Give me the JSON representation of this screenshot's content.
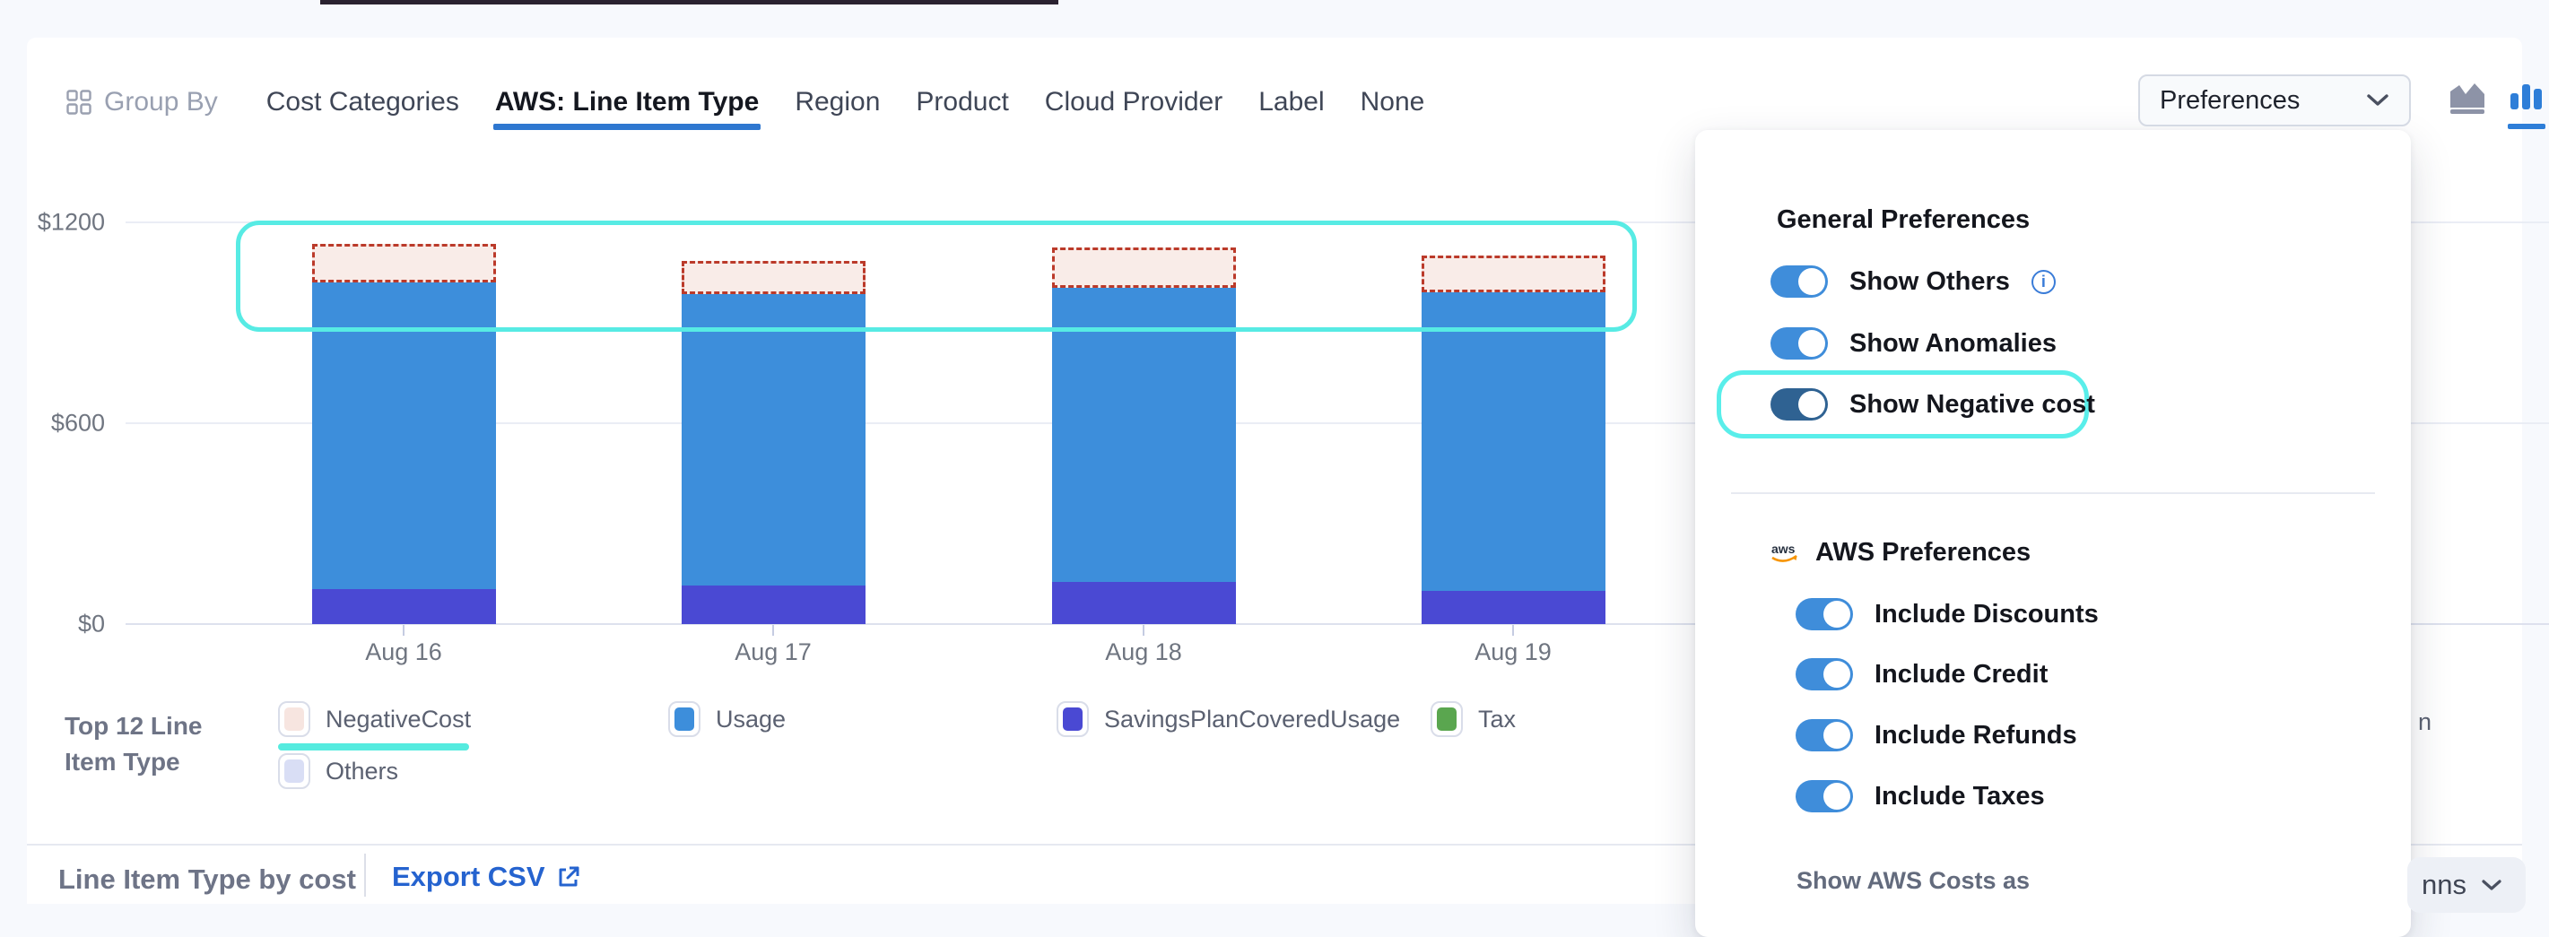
{
  "header": {
    "group_by_label": "Group By",
    "tabs": [
      {
        "label": "Cost Categories",
        "active": false
      },
      {
        "label": "AWS: Line Item Type",
        "active": true
      },
      {
        "label": "Region",
        "active": false
      },
      {
        "label": "Product",
        "active": false
      },
      {
        "label": "Cloud Provider",
        "active": false
      },
      {
        "label": "Label",
        "active": false
      },
      {
        "label": "None",
        "active": false
      }
    ],
    "preferences_button_label": "Preferences",
    "chart_type_icons": [
      {
        "name": "area-chart-icon",
        "active": false
      },
      {
        "name": "bar-chart-icon",
        "active": true
      }
    ]
  },
  "chart_data": {
    "type": "bar",
    "stacked": true,
    "categories": [
      "Aug 16",
      "Aug 17",
      "Aug 18",
      "Aug 19"
    ],
    "series": [
      {
        "name": "SavingsPlanCoveredUsage",
        "color": "#4a49d3",
        "values": [
          105,
          115,
          125,
          100
        ]
      },
      {
        "name": "Usage",
        "color": "#3d8edb",
        "values": [
          915,
          870,
          880,
          890
        ]
      },
      {
        "name": "NegativeCost",
        "color": "#f9ece8",
        "border_color": "#bb3a2a",
        "style": "dashed",
        "values": [
          115,
          100,
          120,
          110
        ]
      },
      {
        "name": "Tax",
        "color": "#5aa64f",
        "values": [
          0,
          0,
          0,
          0
        ]
      },
      {
        "name": "Others",
        "color": "#d9def5",
        "values": [
          0,
          0,
          0,
          0
        ]
      }
    ],
    "yticks": [
      {
        "label": "$0",
        "value": 0
      },
      {
        "label": "$600",
        "value": 600
      },
      {
        "label": "$1200",
        "value": 1200
      }
    ],
    "ylim": [
      0,
      1200
    ],
    "grid": true,
    "legend_position": "bottom",
    "annotations": [
      "cyan rounded highlight box around negative-cost bar tops",
      "cyan rounded highlight box around Show Negative cost toggle",
      "cyan underline under NegativeCost legend item"
    ]
  },
  "legend": {
    "title": "Top 12 Line Item Type",
    "items": [
      {
        "label": "NegativeCost",
        "color": "#f7e5e0",
        "highlighted": true
      },
      {
        "label": "Others",
        "color": "#d9def5",
        "highlighted": false
      },
      {
        "label": "Usage",
        "color": "#3d8edb",
        "highlighted": false
      },
      {
        "label": "SavingsPlanCoveredUsage",
        "color": "#4a49d3",
        "highlighted": false
      },
      {
        "label": "Tax",
        "color": "#5aa64f",
        "highlighted": false
      }
    ],
    "hidden_item_fragment": "n"
  },
  "footer": {
    "title": "Line Item Type by cost",
    "export_label": "Export CSV"
  },
  "preferences_panel": {
    "general": {
      "heading": "General Preferences",
      "toggles": [
        {
          "label": "Show Others",
          "on": true,
          "variant": "blue",
          "has_info": true
        },
        {
          "label": "Show Anomalies",
          "on": true,
          "variant": "blue",
          "has_info": false
        },
        {
          "label": "Show Negative cost",
          "on": true,
          "variant": "dark",
          "has_info": false,
          "highlighted": true
        }
      ]
    },
    "aws": {
      "heading": "AWS Preferences",
      "toggles": [
        {
          "label": "Include Discounts",
          "on": true,
          "variant": "blue"
        },
        {
          "label": "Include Credit",
          "on": true,
          "variant": "blue"
        },
        {
          "label": "Include Refunds",
          "on": true,
          "variant": "blue"
        },
        {
          "label": "Include Taxes",
          "on": true,
          "variant": "blue"
        }
      ],
      "show_costs_label": "Show AWS Costs as"
    }
  },
  "partials": {
    "columns_button_fragment": "nns"
  },
  "colors": {
    "accent_blue": "#2e77d0",
    "toggle_blue": "#3f8dda",
    "toggle_dark": "#2f6292",
    "highlight_cyan": "#57ebe4",
    "negative_border": "#bb3a2a",
    "export_link": "#2563cf",
    "aws_orange": "#f79400"
  }
}
